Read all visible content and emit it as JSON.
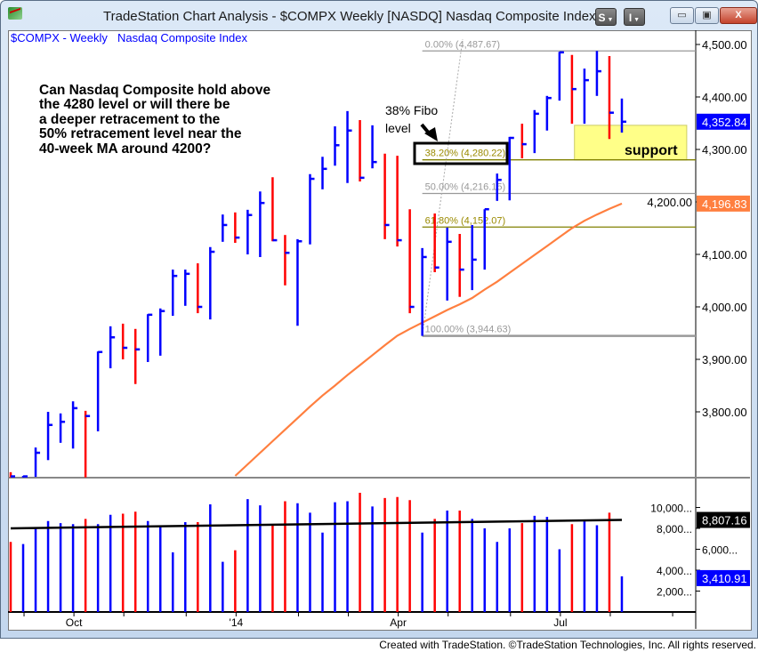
{
  "window": {
    "title": "TradeStation Chart Analysis - $COMPX Weekly [NASDQ] Nasdaq Composite Index",
    "s_button": "S",
    "i_button": "I",
    "minimize": "▭",
    "maximize": "▣",
    "close": "X"
  },
  "chart_header": {
    "symbol": "$COMPX - Weekly",
    "name": "Nasdaq Composite Index"
  },
  "annotation": {
    "question_lines": [
      "Can Nasdaq Composite hold above",
      "the 4280 level or will there be",
      "a deeper retracement to the",
      "50% retracement level near the",
      "40-week MA around 4200?"
    ],
    "fibo_note_lines": [
      "38% Fibo",
      "level"
    ],
    "support_label": "support"
  },
  "colors": {
    "up": "#0000ff",
    "down": "#ff0000",
    "ma": "#ff7f3f",
    "volume_ma": "#000000",
    "support_fill": "#ffff88",
    "fib_olive": "#808000",
    "fib_gray": "#999999",
    "last_price_bg": "#0000ff",
    "ma_label_bg": "#ff7f3f"
  },
  "footer": "Created with TradeStation. ©TradeStation Technologies, Inc. All rights reserved.",
  "chart_data": [
    {
      "type": "bar",
      "style": "ohlc",
      "title": "$COMPX - Weekly  Nasdaq Composite Index",
      "ylim": [
        3675,
        4540
      ],
      "y_ticks": [
        "4,500.00",
        "4,400.00",
        "4,300.00",
        "4,200.00",
        "4,100.00",
        "4,000.00",
        "3,900.00",
        "3,800.00"
      ],
      "y_tick_values": [
        4500,
        4400,
        4300,
        4200,
        4100,
        4000,
        3900,
        3800
      ],
      "x_ticks": [
        {
          "index": 1,
          "label": ""
        },
        {
          "index": 5,
          "label": "Oct"
        },
        {
          "index": 9,
          "label": ""
        },
        {
          "index": 14,
          "label": ""
        },
        {
          "index": 18,
          "label": "'14"
        },
        {
          "index": 23,
          "label": ""
        },
        {
          "index": 27,
          "label": ""
        },
        {
          "index": 31,
          "label": "Apr"
        },
        {
          "index": 35,
          "label": ""
        },
        {
          "index": 40,
          "label": ""
        },
        {
          "index": 44,
          "label": "Jul"
        },
        {
          "index": 48,
          "label": ""
        },
        {
          "index": 53,
          "label": ""
        }
      ],
      "x_count": 55,
      "bars": [
        {
          "h": 3685,
          "l": 3675,
          "c": 3677,
          "dir": "down"
        },
        {
          "h": 3678,
          "l": 3675,
          "c": 3677,
          "dir": "up"
        },
        {
          "h": 3732,
          "l": 3676,
          "c": 3722,
          "dir": "up"
        },
        {
          "h": 3800,
          "l": 3708,
          "c": 3775,
          "dir": "up"
        },
        {
          "h": 3797,
          "l": 3741,
          "c": 3781,
          "dir": "up"
        },
        {
          "h": 3820,
          "l": 3730,
          "c": 3807,
          "dir": "up"
        },
        {
          "h": 3802,
          "l": 3675,
          "c": 3792,
          "dir": "down"
        },
        {
          "h": 3915,
          "l": 3763,
          "c": 3914,
          "dir": "up"
        },
        {
          "h": 3963,
          "l": 3883,
          "c": 3942,
          "dir": "up"
        },
        {
          "h": 3968,
          "l": 3900,
          "c": 3922,
          "dir": "down"
        },
        {
          "h": 3958,
          "l": 3853,
          "c": 3919,
          "dir": "down"
        },
        {
          "h": 3986,
          "l": 3895,
          "c": 3985,
          "dir": "up"
        },
        {
          "h": 3997,
          "l": 3907,
          "c": 3992,
          "dir": "up"
        },
        {
          "h": 4071,
          "l": 3983,
          "c": 4059,
          "dir": "up"
        },
        {
          "h": 4071,
          "l": 4002,
          "c": 4063,
          "dir": "up"
        },
        {
          "h": 4083,
          "l": 3988,
          "c": 4000,
          "dir": "down"
        },
        {
          "h": 4114,
          "l": 3976,
          "c": 4105,
          "dir": "up"
        },
        {
          "h": 4176,
          "l": 4124,
          "c": 4156,
          "dir": "up"
        },
        {
          "h": 4180,
          "l": 4122,
          "c": 4132,
          "dir": "down"
        },
        {
          "h": 4185,
          "l": 4100,
          "c": 4175,
          "dir": "up"
        },
        {
          "h": 4220,
          "l": 4095,
          "c": 4198,
          "dir": "up"
        },
        {
          "h": 4247,
          "l": 4125,
          "c": 4127,
          "dir": "down"
        },
        {
          "h": 4137,
          "l": 4041,
          "c": 4103,
          "dir": "down"
        },
        {
          "h": 4129,
          "l": 3964,
          "c": 4125,
          "dir": "up"
        },
        {
          "h": 4253,
          "l": 4119,
          "c": 4244,
          "dir": "up"
        },
        {
          "h": 4286,
          "l": 4224,
          "c": 4263,
          "dir": "up"
        },
        {
          "h": 4344,
          "l": 4269,
          "c": 4308,
          "dir": "up"
        },
        {
          "h": 4373,
          "l": 4236,
          "c": 4336,
          "dir": "up"
        },
        {
          "h": 4356,
          "l": 4239,
          "c": 4246,
          "dir": "down"
        },
        {
          "h": 4346,
          "l": 4264,
          "c": 4276,
          "dir": "up"
        },
        {
          "h": 4292,
          "l": 4129,
          "c": 4156,
          "dir": "down"
        },
        {
          "h": 4288,
          "l": 4115,
          "c": 4127,
          "dir": "down"
        },
        {
          "h": 4186,
          "l": 3988,
          "c": 4000,
          "dir": "down"
        },
        {
          "h": 4112,
          "l": 3944.63,
          "c": 4095,
          "dir": "up"
        },
        {
          "h": 4178,
          "l": 4066,
          "c": 4075,
          "dir": "down"
        },
        {
          "h": 4151,
          "l": 4012,
          "c": 4124,
          "dir": "up"
        },
        {
          "h": 4139,
          "l": 4019,
          "c": 4071,
          "dir": "down"
        },
        {
          "h": 4156,
          "l": 4032,
          "c": 4090,
          "dir": "up"
        },
        {
          "h": 4186,
          "l": 4071,
          "c": 4186,
          "dir": "up"
        },
        {
          "h": 4254,
          "l": 4202,
          "c": 4242,
          "dir": "up"
        },
        {
          "h": 4324,
          "l": 4203,
          "c": 4322,
          "dir": "up"
        },
        {
          "h": 4349,
          "l": 4283,
          "c": 4310,
          "dir": "down"
        },
        {
          "h": 4375,
          "l": 4293,
          "c": 4368,
          "dir": "up"
        },
        {
          "h": 4402,
          "l": 4336,
          "c": 4398,
          "dir": "up"
        },
        {
          "h": 4486,
          "l": 4393,
          "c": 4485,
          "dir": "up"
        },
        {
          "h": 4480,
          "l": 4349,
          "c": 4415,
          "dir": "down"
        },
        {
          "h": 4454,
          "l": 4349,
          "c": 4432,
          "dir": "up"
        },
        {
          "h": 4487.67,
          "l": 4402,
          "c": 4449,
          "dir": "up"
        },
        {
          "h": 4478,
          "l": 4320,
          "c": 4370,
          "dir": "down"
        },
        {
          "h": 4397,
          "l": 4332,
          "c": 4352.84,
          "dir": "up"
        }
      ],
      "moving_average": {
        "start_index": 18,
        "values": [
          3678,
          3700,
          3722,
          3744,
          3766,
          3788,
          3810,
          3831,
          3850,
          3870,
          3889,
          3908,
          3927,
          3945,
          3958,
          3970,
          3982,
          3994,
          4005,
          4017,
          4033,
          4048,
          4065,
          4082,
          4099,
          4116,
          4133,
          4150,
          4164,
          4176,
          4187,
          4196.83
        ]
      },
      "last_price_label": "4,352.84",
      "ma_label": "4,196.83",
      "fibonacci": {
        "start_index": 33,
        "levels": [
          {
            "label": "0.00% (4,487.67)",
            "value": 4487.67,
            "color": "gray"
          },
          {
            "label": "38.20% (4,280.22)",
            "value": 4280.22,
            "color": "olive"
          },
          {
            "label": "50.00% (4,216.15)",
            "value": 4216.15,
            "color": "gray"
          },
          {
            "label": "61.80% (4,152.07)",
            "value": 4152.07,
            "color": "olive"
          },
          {
            "label": "100.00% (3,944.63)",
            "value": 3944.63,
            "color": "gray"
          }
        ]
      },
      "support_zone": {
        "from_index": 45.2,
        "to_index": 54.2,
        "low": 4280,
        "high": 4346
      }
    },
    {
      "type": "bar",
      "title": "Volume",
      "ylim": [
        0,
        12000
      ],
      "y_ticks": [
        "10,000...",
        "8,000...",
        "6,000...",
        "4,000...",
        "2,000..."
      ],
      "y_tick_values": [
        10000,
        8000,
        6000,
        4000,
        2000
      ],
      "values": [
        6700,
        6500,
        8000,
        8700,
        8500,
        8400,
        8900,
        8400,
        9300,
        9400,
        9600,
        8700,
        8300,
        5700,
        8600,
        8600,
        10300,
        4800,
        5900,
        10800,
        10200,
        8300,
        10600,
        10400,
        9500,
        7600,
        10500,
        10600,
        11400,
        10100,
        10900,
        11000,
        10700,
        7600,
        8900,
        9700,
        9700,
        8900,
        8000,
        6700,
        8000,
        8500,
        9200,
        9100,
        6000,
        8400,
        8800,
        8300,
        9500,
        3410.91
      ],
      "volume_ma": {
        "start": 8000,
        "end": 8807.16
      },
      "last_volume_label": "3,410.91",
      "volume_ma_label": "8,807.16"
    }
  ]
}
